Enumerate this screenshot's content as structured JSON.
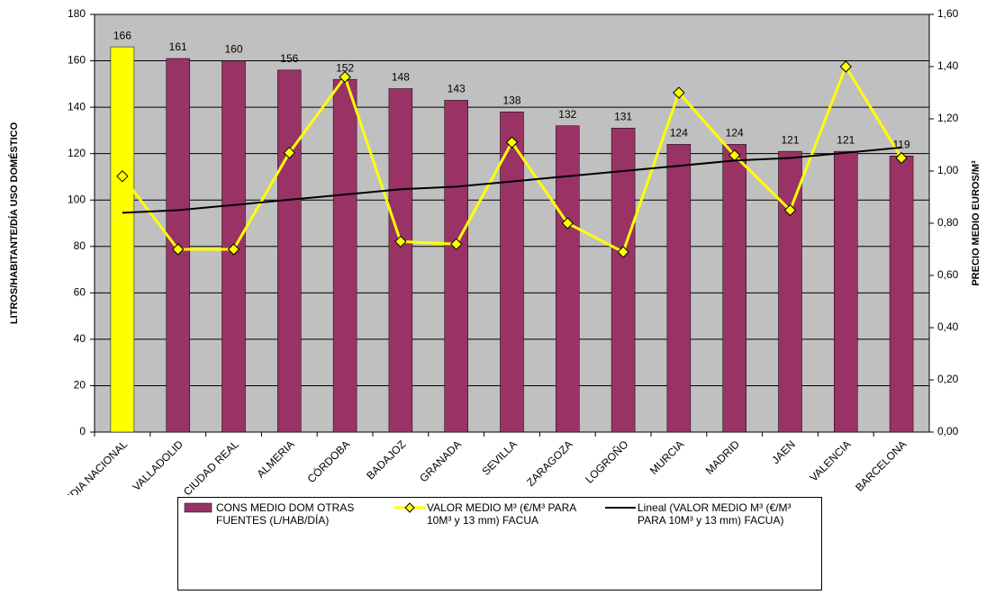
{
  "chart_data": {
    "type": "bar",
    "y_label": "LITROS/HABITANTE/DÍA USO DOMÉSTICO",
    "y2_label": "PRECIO MEDIO EUROS/M³",
    "categories": [
      "MEDIA NACIONAL",
      "VALLADOLID",
      "CIUDAD REAL",
      "ALMERIA",
      "CÓRDOBA",
      "BADAJOZ",
      "GRANADA",
      "SEVILLA",
      "ZARAGOZA",
      "LOGROÑO",
      "MURCIA",
      "MADRID",
      "JAEN",
      "VALENCIA",
      "BARCELONA"
    ],
    "series": [
      {
        "name": "CONS MEDIO DOM OTRAS FUENTES (L/HAB/DÍA)",
        "type": "bar",
        "color": "#993366",
        "bar_colors": [
          "#ffff00",
          "#993366",
          "#993366",
          "#993366",
          "#993366",
          "#993366",
          "#993366",
          "#993366",
          "#993366",
          "#993366",
          "#993366",
          "#993366",
          "#993366",
          "#993366",
          "#993366"
        ],
        "values": [
          166,
          161,
          160,
          156,
          152,
          148,
          143,
          138,
          132,
          131,
          124,
          124,
          121,
          121,
          119
        ]
      },
      {
        "name": "VALOR MEDIO M³ (€/M³ PARA 10M³ y 13 mm) FACUA",
        "type": "line",
        "axis": "y2",
        "color": "#ffff00",
        "marker": "diamond",
        "values": [
          0.98,
          0.7,
          0.7,
          1.07,
          1.36,
          0.73,
          0.72,
          1.11,
          0.8,
          0.69,
          1.3,
          1.06,
          0.85,
          1.4,
          1.05
        ]
      },
      {
        "name": "Lineal (VALOR MEDIO M³ (€/M³ PARA 10M³ y 13 mm) FACUA)",
        "type": "line",
        "axis": "y2",
        "color": "#000000",
        "values": [
          0.84,
          0.85,
          0.87,
          0.89,
          0.91,
          0.93,
          0.94,
          0.96,
          0.98,
          1.0,
          1.02,
          1.04,
          1.05,
          1.07,
          1.09
        ]
      }
    ],
    "ylim": [
      0,
      180
    ],
    "yticks": [
      0,
      20,
      40,
      60,
      80,
      100,
      120,
      140,
      160,
      180
    ],
    "y2lim": [
      0,
      1.6
    ],
    "y2ticks": [
      {
        "value": 0,
        "label": "0,00"
      },
      {
        "value": 0.2,
        "label": "0,20"
      },
      {
        "value": 0.4,
        "label": "0,40"
      },
      {
        "value": 0.6,
        "label": "0,60"
      },
      {
        "value": 0.8,
        "label": "0,80"
      },
      {
        "value": 1.0,
        "label": "1,00"
      },
      {
        "value": 1.2,
        "label": "1,20"
      },
      {
        "value": 1.4,
        "label": "1,40"
      },
      {
        "value": 1.6,
        "label": "1,60"
      }
    ],
    "grid": true,
    "legend": "bottom"
  }
}
